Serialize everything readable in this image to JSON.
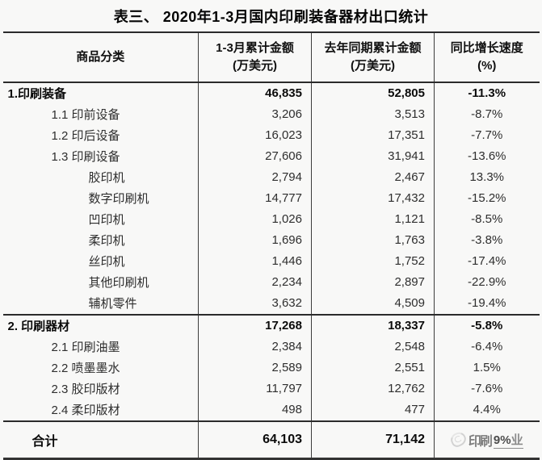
{
  "title": "表三、 2020年1-3月国内印刷装备器材出口统计",
  "chart_data": {
    "type": "table",
    "title": "表三、 2020年1-3月国内印刷装备器材出口统计",
    "columns": [
      {
        "line1": "商品分类",
        "line2": ""
      },
      {
        "line1": "1-3月累计金额",
        "line2": "(万美元)"
      },
      {
        "line1": "去年同期累计金额",
        "line2": "(万美元)"
      },
      {
        "line1": "同比增长速度",
        "line2": "(%)"
      }
    ],
    "rows": [
      {
        "name": "1.印刷装备",
        "indent": 0,
        "bold": true,
        "section_start": false,
        "current": "46,835",
        "previous": "52,805",
        "yoy": "-11.3%"
      },
      {
        "name": "1.1 印前设备",
        "indent": 1,
        "bold": false,
        "section_start": false,
        "current": "3,206",
        "previous": "3,513",
        "yoy": "-8.7%"
      },
      {
        "name": "1.2 印后设备",
        "indent": 1,
        "bold": false,
        "section_start": false,
        "current": "16,023",
        "previous": "17,351",
        "yoy": "-7.7%"
      },
      {
        "name": "1.3 印刷设备",
        "indent": 1,
        "bold": false,
        "section_start": false,
        "current": "27,606",
        "previous": "31,941",
        "yoy": "-13.6%"
      },
      {
        "name": "胶印机",
        "indent": 2,
        "bold": false,
        "section_start": false,
        "current": "2,794",
        "previous": "2,467",
        "yoy": "13.3%"
      },
      {
        "name": "数字印刷机",
        "indent": 2,
        "bold": false,
        "section_start": false,
        "current": "14,777",
        "previous": "17,432",
        "yoy": "-15.2%"
      },
      {
        "name": "凹印机",
        "indent": 2,
        "bold": false,
        "section_start": false,
        "current": "1,026",
        "previous": "1,121",
        "yoy": "-8.5%"
      },
      {
        "name": "柔印机",
        "indent": 2,
        "bold": false,
        "section_start": false,
        "current": "1,696",
        "previous": "1,763",
        "yoy": "-3.8%"
      },
      {
        "name": "丝印机",
        "indent": 2,
        "bold": false,
        "section_start": false,
        "current": "1,446",
        "previous": "1,752",
        "yoy": "-17.4%"
      },
      {
        "name": "其他印刷机",
        "indent": 2,
        "bold": false,
        "section_start": false,
        "current": "2,234",
        "previous": "2,897",
        "yoy": "-22.9%"
      },
      {
        "name": "辅机零件",
        "indent": 2,
        "bold": false,
        "section_start": false,
        "current": "3,632",
        "previous": "4,509",
        "yoy": "-19.4%"
      },
      {
        "name": "2. 印刷器材",
        "indent": 0,
        "bold": true,
        "section_start": true,
        "current": "17,268",
        "previous": "18,337",
        "yoy": "-5.8%"
      },
      {
        "name": "2.1 印刷油墨",
        "indent": 1,
        "bold": false,
        "section_start": false,
        "current": "2,384",
        "previous": "2,548",
        "yoy": "-6.4%"
      },
      {
        "name": "2.2 喷墨墨水",
        "indent": 1,
        "bold": false,
        "section_start": false,
        "current": "2,589",
        "previous": "2,551",
        "yoy": "1.5%"
      },
      {
        "name": "2.3 胶印版材",
        "indent": 1,
        "bold": false,
        "section_start": false,
        "current": "11,797",
        "previous": "12,762",
        "yoy": "-7.6%"
      },
      {
        "name": "2.4 柔印版材",
        "indent": 1,
        "bold": false,
        "section_start": false,
        "current": "498",
        "previous": "477",
        "yoy": "4.4%"
      }
    ],
    "total": {
      "label": "合计",
      "current": "64,103",
      "previous": "71,142",
      "yoy_visible": "9%"
    },
    "watermark": {
      "prefix": "印刷",
      "suffix": "业"
    }
  }
}
